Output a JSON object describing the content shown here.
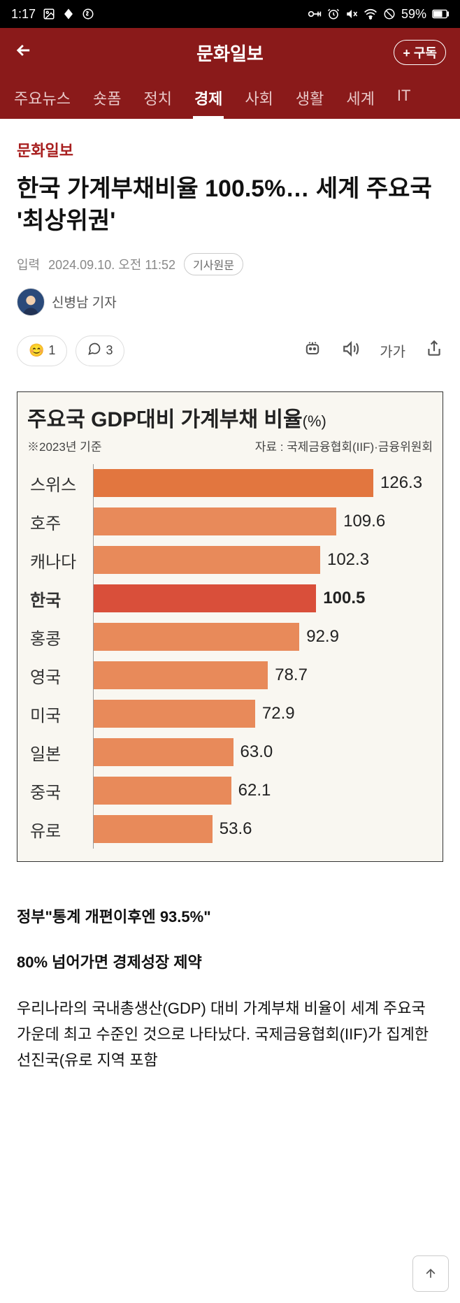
{
  "status": {
    "time": "1:17",
    "battery": "59%"
  },
  "header": {
    "title": "문화일보",
    "subscribe": "+ 구독"
  },
  "tabs": {
    "items": [
      "주요뉴스",
      "숏폼",
      "정치",
      "경제",
      "사회",
      "생활",
      "세계",
      "IT"
    ],
    "active_index": 3
  },
  "article": {
    "source": "문화일보",
    "headline": "한국 가계부채비율 100.5%… 세계 주요국 '최상위권'",
    "meta_prefix": "입력",
    "date": "2024.09.10. 오전 11:52",
    "original_btn": "기사원문",
    "byline": "신병남 기자",
    "reactions_count": "1",
    "comments_count": "3",
    "font_size_label": "가가"
  },
  "chart": {
    "title_main": "주요국 GDP대비 가계부채 비율",
    "title_unit": "(%)",
    "sub_left": "※2023년 기준",
    "sub_right": "자료 : 국제금융협회(IIF)·금융위원회",
    "max_value": 126.3,
    "colors": {
      "normal": "#e88a5a",
      "highlight": "#d94f3a",
      "first": "#e2763f",
      "bg": "#f9f7f1"
    },
    "bars": [
      {
        "label": "스위스",
        "value": 126.3,
        "highlight": false
      },
      {
        "label": "호주",
        "value": 109.6,
        "highlight": false
      },
      {
        "label": "캐나다",
        "value": 102.3,
        "highlight": false
      },
      {
        "label": "한국",
        "value": 100.5,
        "highlight": true
      },
      {
        "label": "홍콩",
        "value": 92.9,
        "highlight": false
      },
      {
        "label": "영국",
        "value": 78.7,
        "highlight": false
      },
      {
        "label": "미국",
        "value": 72.9,
        "highlight": false
      },
      {
        "label": "일본",
        "value": 63.0,
        "highlight": false
      },
      {
        "label": "중국",
        "value": 62.1,
        "highlight": false
      },
      {
        "label": "유로",
        "value": 53.6,
        "highlight": false
      }
    ]
  },
  "body": {
    "p1": "정부\"통계 개편이후엔 93.5%\"",
    "p2": "80% 넘어가면 경제성장 제약",
    "p3": "우리나라의 국내총생산(GDP) 대비 가계부채 비율이 세계 주요국 가운데 최고 수준인 것으로 나타났다. 국제금융협회(IIF)가 집계한 선진국(유로 지역 포함"
  }
}
